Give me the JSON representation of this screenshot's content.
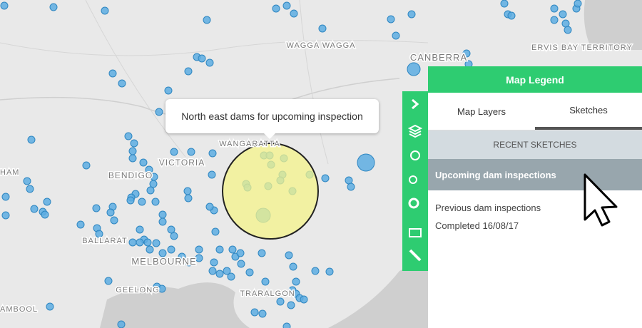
{
  "map": {
    "labels": [
      "WAGGA WAGGA",
      "CANBERRA",
      "ERVIS BAY TERRITORY",
      "VICTORIA",
      "BENDIGO",
      "WANGARATTA",
      "BALLARAT",
      "MELBOURNE",
      "GEELONG",
      "TRARALGON",
      "HAM",
      "AMBOOL"
    ]
  },
  "tooltip": {
    "text": "North east dams for upcoming inspection"
  },
  "legend": {
    "title": "Map Legend",
    "tabs": [
      "Map Layers",
      "Sketches"
    ],
    "section": "RECENT SKETCHES",
    "items": [
      {
        "title": "Upcoming dam inspections"
      },
      {
        "title": "Previous dam inspections",
        "subtitle": "Completed 16/08/17"
      }
    ]
  }
}
